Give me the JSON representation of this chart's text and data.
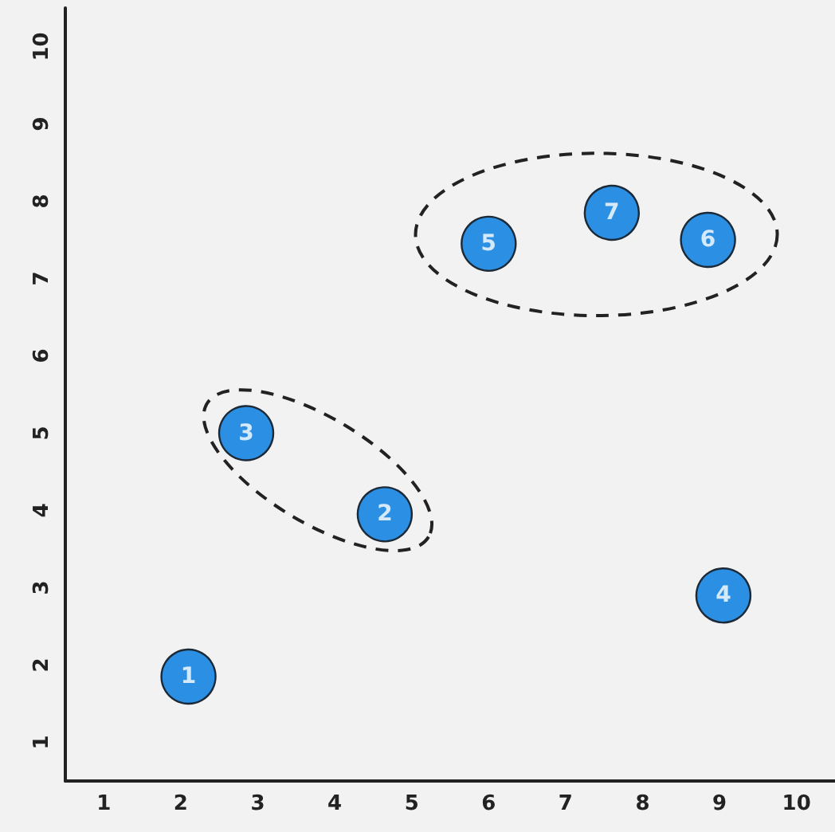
{
  "chart_data": {
    "type": "scatter",
    "x": [
      2.1,
      4.65,
      2.85,
      9.05,
      6.0,
      8.85,
      7.6
    ],
    "values": [
      1.85,
      3.95,
      5.0,
      2.9,
      7.45,
      7.5,
      7.85
    ],
    "annotations": [
      {
        "text": "1",
        "x": 2.1,
        "y": 1.85
      },
      {
        "text": "2",
        "x": 4.65,
        "y": 3.95
      },
      {
        "text": "3",
        "x": 2.85,
        "y": 5.0
      },
      {
        "text": "4",
        "x": 9.05,
        "y": 2.9
      },
      {
        "text": "5",
        "x": 6.0,
        "y": 7.45
      },
      {
        "text": "6",
        "x": 8.85,
        "y": 7.5
      },
      {
        "text": "7",
        "x": 7.6,
        "y": 7.85
      }
    ],
    "color": "#2b8fe3",
    "marker": "circle",
    "xlim": [
      0.5,
      10.5
    ],
    "xticks": [
      1,
      2,
      3,
      4,
      5,
      6,
      7,
      8,
      9,
      10
    ],
    "ylim": [
      0.5,
      10.5
    ],
    "yticks": [
      1,
      2,
      3,
      4,
      5,
      6,
      7,
      8,
      9,
      10
    ],
    "grid": false
  }
}
